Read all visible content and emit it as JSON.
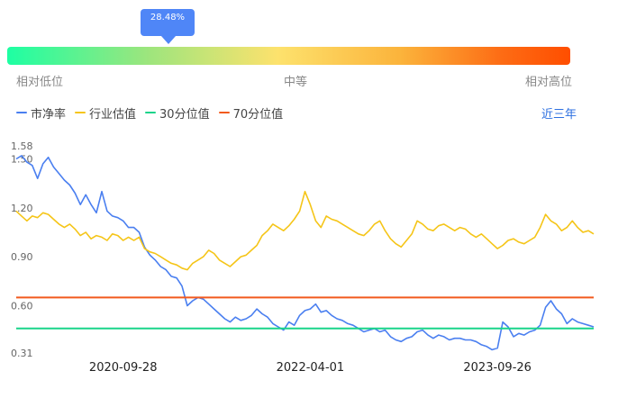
{
  "percentile": {
    "value_label": "28.48%",
    "value": 28.48,
    "low_label": "相对低位",
    "mid_label": "中等",
    "high_label": "相对高位"
  },
  "legend": [
    {
      "label": "市净率",
      "color": "#4a7ff0"
    },
    {
      "label": "行业估值",
      "color": "#f5c518"
    },
    {
      "label": "30分位值",
      "color": "#19d48a"
    },
    {
      "label": "70分位值",
      "color": "#f25a1d"
    }
  ],
  "range_button": "近三年",
  "chart_data": {
    "type": "line",
    "ylim": [
      0.31,
      1.58
    ],
    "yticks": [
      "1.58",
      "1.50",
      "1.20",
      "0.90",
      "0.60",
      "0.31"
    ],
    "ytick_values": [
      1.58,
      1.5,
      1.2,
      0.9,
      0.6,
      0.31
    ],
    "xtick_labels": [
      "2020-09-28",
      "2022-04-01",
      "2023-09-26"
    ],
    "xtick_positions": [
      0.2,
      0.55,
      0.9
    ],
    "x_range": [
      0,
      1
    ],
    "series": [
      {
        "name": "市净率",
        "color": "#4a7ff0",
        "points": [
          [
            0.0,
            1.5
          ],
          [
            0.01,
            1.52
          ],
          [
            0.02,
            1.48
          ],
          [
            0.03,
            1.46
          ],
          [
            0.04,
            1.38
          ],
          [
            0.05,
            1.47
          ],
          [
            0.06,
            1.51
          ],
          [
            0.07,
            1.45
          ],
          [
            0.08,
            1.41
          ],
          [
            0.09,
            1.37
          ],
          [
            0.1,
            1.34
          ],
          [
            0.11,
            1.29
          ],
          [
            0.12,
            1.22
          ],
          [
            0.13,
            1.28
          ],
          [
            0.14,
            1.22
          ],
          [
            0.15,
            1.17
          ],
          [
            0.16,
            1.3
          ],
          [
            0.17,
            1.18
          ],
          [
            0.18,
            1.15
          ],
          [
            0.19,
            1.14
          ],
          [
            0.2,
            1.12
          ],
          [
            0.21,
            1.08
          ],
          [
            0.22,
            1.08
          ],
          [
            0.23,
            1.05
          ],
          [
            0.24,
            0.96
          ],
          [
            0.25,
            0.91
          ],
          [
            0.26,
            0.88
          ],
          [
            0.27,
            0.84
          ],
          [
            0.28,
            0.82
          ],
          [
            0.29,
            0.78
          ],
          [
            0.3,
            0.77
          ],
          [
            0.31,
            0.72
          ],
          [
            0.32,
            0.6
          ],
          [
            0.33,
            0.63
          ],
          [
            0.34,
            0.65
          ],
          [
            0.35,
            0.64
          ],
          [
            0.36,
            0.61
          ],
          [
            0.37,
            0.58
          ],
          [
            0.38,
            0.55
          ],
          [
            0.39,
            0.52
          ],
          [
            0.4,
            0.5
          ],
          [
            0.41,
            0.53
          ],
          [
            0.42,
            0.51
          ],
          [
            0.43,
            0.52
          ],
          [
            0.44,
            0.54
          ],
          [
            0.45,
            0.58
          ],
          [
            0.46,
            0.55
          ],
          [
            0.47,
            0.53
          ],
          [
            0.48,
            0.49
          ],
          [
            0.49,
            0.47
          ],
          [
            0.5,
            0.45
          ],
          [
            0.51,
            0.5
          ],
          [
            0.52,
            0.48
          ],
          [
            0.53,
            0.54
          ],
          [
            0.54,
            0.57
          ],
          [
            0.55,
            0.58
          ],
          [
            0.56,
            0.61
          ],
          [
            0.57,
            0.56
          ],
          [
            0.58,
            0.57
          ],
          [
            0.59,
            0.54
          ],
          [
            0.6,
            0.52
          ],
          [
            0.61,
            0.51
          ],
          [
            0.62,
            0.49
          ],
          [
            0.63,
            0.48
          ],
          [
            0.64,
            0.46
          ],
          [
            0.65,
            0.44
          ],
          [
            0.66,
            0.45
          ],
          [
            0.67,
            0.46
          ],
          [
            0.68,
            0.44
          ],
          [
            0.69,
            0.45
          ],
          [
            0.7,
            0.41
          ],
          [
            0.71,
            0.39
          ],
          [
            0.72,
            0.38
          ],
          [
            0.73,
            0.4
          ],
          [
            0.74,
            0.41
          ],
          [
            0.75,
            0.44
          ],
          [
            0.76,
            0.45
          ],
          [
            0.77,
            0.42
          ],
          [
            0.78,
            0.4
          ],
          [
            0.79,
            0.42
          ],
          [
            0.8,
            0.41
          ],
          [
            0.81,
            0.39
          ],
          [
            0.82,
            0.4
          ],
          [
            0.83,
            0.4
          ],
          [
            0.84,
            0.39
          ],
          [
            0.85,
            0.39
          ],
          [
            0.86,
            0.38
          ],
          [
            0.87,
            0.36
          ],
          [
            0.88,
            0.35
          ],
          [
            0.89,
            0.33
          ],
          [
            0.9,
            0.34
          ],
          [
            0.91,
            0.5
          ],
          [
            0.92,
            0.47
          ],
          [
            0.93,
            0.41
          ],
          [
            0.94,
            0.43
          ],
          [
            0.95,
            0.42
          ],
          [
            0.96,
            0.44
          ],
          [
            0.97,
            0.45
          ],
          [
            0.98,
            0.48
          ],
          [
            0.99,
            0.59
          ],
          [
            1.0,
            0.63
          ],
          [
            1.01,
            0.58
          ],
          [
            1.02,
            0.55
          ],
          [
            1.03,
            0.49
          ],
          [
            1.04,
            0.52
          ],
          [
            1.05,
            0.5
          ],
          [
            1.06,
            0.49
          ],
          [
            1.07,
            0.48
          ],
          [
            1.08,
            0.47
          ]
        ]
      },
      {
        "name": "行业估值",
        "color": "#f5c518",
        "points": [
          [
            0.0,
            1.18
          ],
          [
            0.01,
            1.15
          ],
          [
            0.02,
            1.12
          ],
          [
            0.03,
            1.15
          ],
          [
            0.04,
            1.14
          ],
          [
            0.05,
            1.17
          ],
          [
            0.06,
            1.16
          ],
          [
            0.07,
            1.13
          ],
          [
            0.08,
            1.1
          ],
          [
            0.09,
            1.08
          ],
          [
            0.1,
            1.1
          ],
          [
            0.11,
            1.07
          ],
          [
            0.12,
            1.03
          ],
          [
            0.13,
            1.05
          ],
          [
            0.14,
            1.01
          ],
          [
            0.15,
            1.03
          ],
          [
            0.16,
            1.02
          ],
          [
            0.17,
            1.0
          ],
          [
            0.18,
            1.04
          ],
          [
            0.19,
            1.03
          ],
          [
            0.2,
            1.0
          ],
          [
            0.21,
            1.02
          ],
          [
            0.22,
            1.0
          ],
          [
            0.23,
            1.02
          ],
          [
            0.24,
            0.95
          ],
          [
            0.25,
            0.93
          ],
          [
            0.26,
            0.92
          ],
          [
            0.27,
            0.9
          ],
          [
            0.28,
            0.88
          ],
          [
            0.29,
            0.86
          ],
          [
            0.3,
            0.85
          ],
          [
            0.31,
            0.83
          ],
          [
            0.32,
            0.82
          ],
          [
            0.33,
            0.86
          ],
          [
            0.34,
            0.88
          ],
          [
            0.35,
            0.9
          ],
          [
            0.36,
            0.94
          ],
          [
            0.37,
            0.92
          ],
          [
            0.38,
            0.88
          ],
          [
            0.39,
            0.86
          ],
          [
            0.4,
            0.84
          ],
          [
            0.41,
            0.87
          ],
          [
            0.42,
            0.9
          ],
          [
            0.43,
            0.91
          ],
          [
            0.44,
            0.94
          ],
          [
            0.45,
            0.97
          ],
          [
            0.46,
            1.03
          ],
          [
            0.47,
            1.06
          ],
          [
            0.48,
            1.1
          ],
          [
            0.49,
            1.08
          ],
          [
            0.5,
            1.06
          ],
          [
            0.51,
            1.09
          ],
          [
            0.52,
            1.13
          ],
          [
            0.53,
            1.18
          ],
          [
            0.54,
            1.3
          ],
          [
            0.55,
            1.22
          ],
          [
            0.56,
            1.12
          ],
          [
            0.57,
            1.08
          ],
          [
            0.58,
            1.15
          ],
          [
            0.59,
            1.13
          ],
          [
            0.6,
            1.12
          ],
          [
            0.61,
            1.1
          ],
          [
            0.62,
            1.08
          ],
          [
            0.63,
            1.06
          ],
          [
            0.64,
            1.04
          ],
          [
            0.65,
            1.03
          ],
          [
            0.66,
            1.06
          ],
          [
            0.67,
            1.1
          ],
          [
            0.68,
            1.12
          ],
          [
            0.69,
            1.06
          ],
          [
            0.7,
            1.01
          ],
          [
            0.71,
            0.98
          ],
          [
            0.72,
            0.96
          ],
          [
            0.73,
            1.0
          ],
          [
            0.74,
            1.04
          ],
          [
            0.75,
            1.12
          ],
          [
            0.76,
            1.1
          ],
          [
            0.77,
            1.07
          ],
          [
            0.78,
            1.06
          ],
          [
            0.79,
            1.09
          ],
          [
            0.8,
            1.1
          ],
          [
            0.81,
            1.08
          ],
          [
            0.82,
            1.06
          ],
          [
            0.83,
            1.08
          ],
          [
            0.84,
            1.07
          ],
          [
            0.85,
            1.04
          ],
          [
            0.86,
            1.02
          ],
          [
            0.87,
            1.04
          ],
          [
            0.88,
            1.01
          ],
          [
            0.89,
            0.98
          ],
          [
            0.9,
            0.95
          ],
          [
            0.91,
            0.97
          ],
          [
            0.92,
            1.0
          ],
          [
            0.93,
            1.01
          ],
          [
            0.94,
            0.99
          ],
          [
            0.95,
            0.98
          ],
          [
            0.96,
            1.0
          ],
          [
            0.97,
            1.02
          ],
          [
            0.98,
            1.08
          ],
          [
            0.99,
            1.16
          ],
          [
            1.0,
            1.12
          ],
          [
            1.01,
            1.1
          ],
          [
            1.02,
            1.06
          ],
          [
            1.03,
            1.08
          ],
          [
            1.04,
            1.12
          ],
          [
            1.05,
            1.08
          ],
          [
            1.06,
            1.05
          ],
          [
            1.07,
            1.06
          ],
          [
            1.08,
            1.04
          ]
        ]
      },
      {
        "name": "30分位值",
        "color": "#19d48a",
        "points": [
          [
            0.0,
            0.46
          ],
          [
            1.08,
            0.46
          ]
        ]
      },
      {
        "name": "70分位值",
        "color": "#f25a1d",
        "points": [
          [
            0.0,
            0.65
          ],
          [
            1.08,
            0.65
          ]
        ]
      }
    ]
  }
}
